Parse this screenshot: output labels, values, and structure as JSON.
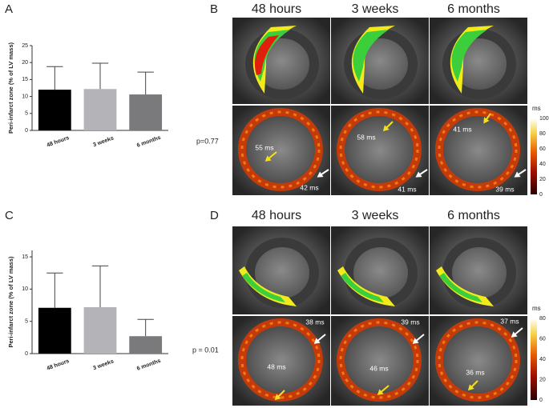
{
  "chart_data": [
    {
      "type": "bar",
      "panel": "A",
      "y_label": "Peri-infarct zone (% of LV mass)",
      "categories": [
        "48 hours",
        "3 weeks",
        "6 months"
      ],
      "values": [
        12,
        12.2,
        10.6
      ],
      "errors": [
        6.8,
        7.6,
        6.6
      ],
      "colors": [
        "#000000",
        "#b4b4b8",
        "#7a7a7c"
      ],
      "ylim": [
        0,
        25
      ],
      "yticks": [
        0,
        5,
        10,
        15,
        20,
        25
      ],
      "annotation": "p=0.77"
    },
    {
      "type": "bar",
      "panel": "C",
      "y_label": "Peri-infarct zone (% of LV mass)",
      "categories": [
        "48 hours",
        "3 weeks",
        "6 months"
      ],
      "values": [
        7.1,
        7.2,
        2.7
      ],
      "errors": [
        5.4,
        6.4,
        2.6
      ],
      "colors": [
        "#000000",
        "#b4b4b8",
        "#7a7a7c"
      ],
      "ylim": [
        0,
        16
      ],
      "yticks": [
        0,
        5,
        10,
        15
      ],
      "annotation": "p = 0.01"
    }
  ],
  "panels": {
    "B": {
      "label": "B",
      "columns": [
        "48 hours",
        "3 weeks",
        "6 months"
      ],
      "annotations": [
        "55 ms",
        "42 ms",
        "58 ms",
        "41 ms",
        "41 ms",
        "39 ms"
      ],
      "colorbar": {
        "unit": "ms",
        "ticks": [
          0,
          20,
          40,
          60,
          80,
          100
        ]
      }
    },
    "D": {
      "label": "D",
      "columns": [
        "48 hours",
        "3 weeks",
        "6 months"
      ],
      "annotations": [
        "38 ms",
        "48 ms",
        "39 ms",
        "46 ms",
        "37 ms",
        "36 ms"
      ],
      "colorbar": {
        "unit": "ms",
        "ticks": [
          0,
          20,
          40,
          60,
          80
        ]
      }
    }
  }
}
